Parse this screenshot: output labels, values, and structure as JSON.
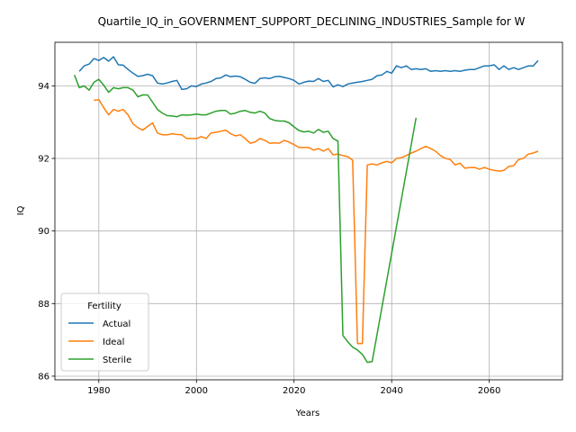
{
  "chart_data": {
    "type": "line",
    "title": "Quartile_IQ_in_GOVERNMENT_SUPPORT_DECLINING_INDUSTRIES_Sample for W",
    "xlabel": "Years",
    "ylabel": "IQ",
    "xlim": [
      1971,
      2075
    ],
    "ylim": [
      85.9,
      95.2
    ],
    "x_ticks": [
      1980,
      2000,
      2020,
      2040,
      2060
    ],
    "y_ticks": [
      86,
      88,
      90,
      92,
      94
    ],
    "grid": true,
    "legend": {
      "title": "Fertility",
      "position": "lower-left"
    },
    "series": [
      {
        "name": "Actual",
        "color": "#1f77b4",
        "x": [
          1976,
          1977,
          1978,
          1979,
          1980,
          1981,
          1982,
          1983,
          1984,
          1985,
          1986,
          1987,
          1988,
          1989,
          1990,
          1991,
          1992,
          1993,
          1994,
          1995,
          1996,
          1997,
          1998,
          1999,
          2000,
          2001,
          2002,
          2003,
          2004,
          2005,
          2006,
          2007,
          2008,
          2009,
          2010,
          2011,
          2012,
          2013,
          2014,
          2015,
          2016,
          2017,
          2018,
          2019,
          2020,
          2021,
          2022,
          2023,
          2024,
          2025,
          2026,
          2027,
          2028,
          2029,
          2030,
          2031,
          2032,
          2033,
          2034,
          2035,
          2036,
          2037,
          2038,
          2039,
          2040,
          2041,
          2042,
          2043,
          2044,
          2045,
          2046,
          2047,
          2048,
          2049,
          2050,
          2051,
          2052,
          2053,
          2054,
          2055,
          2056,
          2057,
          2058,
          2059,
          2060,
          2061,
          2062,
          2063,
          2064,
          2065,
          2066,
          2067,
          2068,
          2069,
          2070
        ],
        "values": [
          94.4,
          94.55,
          94.6,
          94.75,
          94.7,
          94.78,
          94.68,
          94.8,
          94.58,
          94.57,
          94.45,
          94.35,
          94.26,
          94.28,
          94.32,
          94.28,
          94.08,
          94.05,
          94.08,
          94.12,
          94.15,
          93.9,
          93.92,
          94.0,
          93.98,
          94.05,
          94.08,
          94.12,
          94.2,
          94.22,
          94.3,
          94.25,
          94.27,
          94.25,
          94.18,
          94.1,
          94.07,
          94.2,
          94.22,
          94.2,
          94.25,
          94.26,
          94.23,
          94.2,
          94.15,
          94.05,
          94.1,
          94.13,
          94.12,
          94.2,
          94.12,
          94.15,
          93.97,
          94.03,
          93.98,
          94.05,
          94.08,
          94.1,
          94.12,
          94.15,
          94.18,
          94.28,
          94.3,
          94.4,
          94.35,
          94.55,
          94.5,
          94.55,
          94.45,
          94.47,
          94.45,
          94.47,
          94.4,
          94.42,
          94.4,
          94.42,
          94.4,
          94.42,
          94.4,
          94.43,
          94.45,
          94.45,
          94.5,
          94.55,
          94.55,
          94.58,
          94.45,
          94.55,
          94.45,
          94.5,
          94.45,
          94.5,
          94.55,
          94.55,
          94.7
        ]
      },
      {
        "name": "Ideal",
        "color": "#ff7f0e",
        "x": [
          1979,
          1980,
          1981,
          1982,
          1983,
          1984,
          1985,
          1986,
          1987,
          1988,
          1989,
          1990,
          1991,
          1992,
          1993,
          1994,
          1995,
          1996,
          1997,
          1998,
          1999,
          2000,
          2001,
          2002,
          2003,
          2004,
          2005,
          2006,
          2007,
          2008,
          2009,
          2010,
          2011,
          2012,
          2013,
          2014,
          2015,
          2016,
          2017,
          2018,
          2019,
          2020,
          2021,
          2022,
          2023,
          2024,
          2025,
          2026,
          2027,
          2028,
          2029,
          2030,
          2031,
          2032,
          2033,
          2034,
          2035,
          2036,
          2037,
          2038,
          2039,
          2040,
          2041,
          2042,
          2043,
          2044,
          2045,
          2046,
          2047,
          2048,
          2049,
          2050,
          2051,
          2052,
          2053,
          2054,
          2055,
          2056,
          2057,
          2058,
          2059,
          2060,
          2061,
          2062,
          2063,
          2064,
          2065,
          2066,
          2067,
          2068,
          2069,
          2070
        ],
        "values": [
          93.6,
          93.62,
          93.4,
          93.2,
          93.35,
          93.3,
          93.35,
          93.2,
          92.95,
          92.85,
          92.78,
          92.88,
          92.98,
          92.7,
          92.65,
          92.65,
          92.68,
          92.66,
          92.65,
          92.55,
          92.55,
          92.55,
          92.6,
          92.55,
          92.7,
          92.72,
          92.75,
          92.78,
          92.68,
          92.62,
          92.65,
          92.55,
          92.42,
          92.45,
          92.55,
          92.5,
          92.42,
          92.43,
          92.42,
          92.5,
          92.45,
          92.38,
          92.3,
          92.3,
          92.3,
          92.23,
          92.27,
          92.2,
          92.27,
          92.1,
          92.12,
          92.08,
          92.05,
          91.95,
          86.9,
          86.9,
          91.82,
          91.85,
          91.82,
          91.88,
          91.92,
          91.88,
          92.0,
          92.02,
          92.08,
          92.15,
          92.2,
          92.27,
          92.33,
          92.27,
          92.2,
          92.08,
          92.0,
          91.97,
          91.82,
          91.87,
          91.73,
          91.75,
          91.75,
          91.7,
          91.75,
          91.7,
          91.67,
          91.65,
          91.67,
          91.78,
          91.8,
          91.97,
          92.0,
          92.12,
          92.15,
          92.2
        ]
      },
      {
        "name": "Sterile",
        "color": "#2ca02c",
        "x": [
          1975,
          1976,
          1977,
          1978,
          1979,
          1980,
          1981,
          1982,
          1983,
          1984,
          1985,
          1986,
          1987,
          1988,
          1989,
          1990,
          1991,
          1992,
          1993,
          1994,
          1995,
          1996,
          1997,
          1998,
          1999,
          2000,
          2001,
          2002,
          2003,
          2004,
          2005,
          2006,
          2007,
          2008,
          2009,
          2010,
          2011,
          2012,
          2013,
          2014,
          2015,
          2016,
          2017,
          2018,
          2019,
          2020,
          2021,
          2022,
          2023,
          2024,
          2025,
          2026,
          2027,
          2028,
          2029,
          2030,
          2031,
          2032,
          2033,
          2034,
          2035,
          2036,
          2045
        ],
        "values": [
          94.3,
          93.95,
          94.0,
          93.88,
          94.1,
          94.18,
          94.02,
          93.82,
          93.95,
          93.92,
          93.95,
          93.95,
          93.88,
          93.7,
          93.75,
          93.75,
          93.55,
          93.35,
          93.25,
          93.18,
          93.17,
          93.15,
          93.2,
          93.19,
          93.2,
          93.22,
          93.2,
          93.2,
          93.25,
          93.3,
          93.32,
          93.32,
          93.22,
          93.25,
          93.3,
          93.32,
          93.27,
          93.25,
          93.3,
          93.25,
          93.1,
          93.05,
          93.03,
          93.03,
          92.98,
          92.87,
          92.77,
          92.73,
          92.75,
          92.7,
          92.8,
          92.72,
          92.75,
          92.55,
          92.48,
          87.12,
          86.95,
          86.8,
          86.72,
          86.6,
          86.38,
          86.4,
          93.12
        ]
      }
    ]
  }
}
